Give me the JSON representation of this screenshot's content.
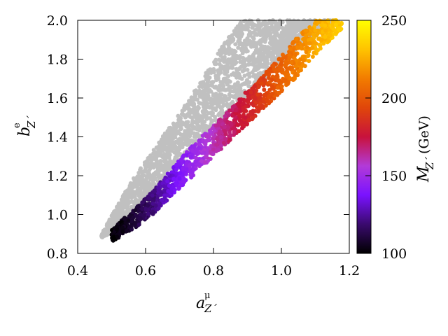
{
  "chart_data": {
    "type": "scatter",
    "title": "",
    "x_axis": {
      "symbol": "a",
      "superscript": "μ",
      "subscript": "Z´",
      "range": [
        0.4,
        1.2
      ],
      "ticks": [
        0.4,
        0.6,
        0.8,
        1.0,
        1.2
      ],
      "tick_labels": [
        "0.4",
        "0.6",
        "0.8",
        "1.0",
        "1.2"
      ]
    },
    "y_axis": {
      "symbol": "b",
      "superscript": "e",
      "subscript": "Z´",
      "range": [
        0.8,
        2.0
      ],
      "ticks": [
        0.8,
        1.0,
        1.2,
        1.4,
        1.6,
        1.8,
        2.0
      ],
      "tick_labels": [
        "0.8",
        "1.0",
        "1.2",
        "1.4",
        "1.6",
        "1.8",
        "2.0"
      ]
    },
    "colorbar": {
      "symbol": "M",
      "subscript": "Z´",
      "unit_text": "(GeV)",
      "range": [
        100,
        250
      ],
      "ticks": [
        100,
        150,
        200,
        250
      ],
      "tick_labels": [
        "100",
        "150",
        "200",
        "250"
      ],
      "palette": [
        "#000000",
        "#3a0a6e",
        "#7a12ff",
        "#b23ad8",
        "#c8123c",
        "#e0460a",
        "#f27c00",
        "#ffc300",
        "#ffff00"
      ]
    },
    "series": [
      {
        "color": "#c0c0c0",
        "description_region": {
          "x_range": [
            0.47,
            1.16
          ],
          "upper_edge": [
            [
              0.47,
              0.9
            ],
            [
              0.55,
              1.15
            ],
            [
              0.65,
              1.4
            ],
            [
              0.75,
              1.65
            ],
            [
              0.82,
              1.85
            ],
            [
              0.88,
              2.0
            ],
            [
              1.16,
              2.0
            ]
          ],
          "lower_edge": [
            [
              0.47,
              0.88
            ],
            [
              0.6,
              1.0
            ],
            [
              0.7,
              1.25
            ],
            [
              0.8,
              1.45
            ],
            [
              0.9,
              1.62
            ],
            [
              1.0,
              1.78
            ],
            [
              1.1,
              1.93
            ],
            [
              1.16,
              2.0
            ]
          ]
        }
      },
      {
        "colored_by": "M_Z",
        "band": [
          {
            "x": 0.5,
            "y_low": 0.86,
            "y_high": 0.92,
            "m": 100
          },
          {
            "x": 0.56,
            "y_low": 0.92,
            "y_high": 1.02,
            "m": 108
          },
          {
            "x": 0.62,
            "y_low": 1.0,
            "y_high": 1.12,
            "m": 120
          },
          {
            "x": 0.68,
            "y_low": 1.1,
            "y_high": 1.24,
            "m": 135
          },
          {
            "x": 0.74,
            "y_low": 1.2,
            "y_high": 1.36,
            "m": 148
          },
          {
            "x": 0.8,
            "y_low": 1.3,
            "y_high": 1.46,
            "m": 160
          },
          {
            "x": 0.86,
            "y_low": 1.4,
            "y_high": 1.56,
            "m": 172
          },
          {
            "x": 0.92,
            "y_low": 1.5,
            "y_high": 1.68,
            "m": 185
          },
          {
            "x": 0.98,
            "y_low": 1.6,
            "y_high": 1.78,
            "m": 200
          },
          {
            "x": 1.04,
            "y_low": 1.7,
            "y_high": 1.9,
            "m": 212
          },
          {
            "x": 1.1,
            "y_low": 1.82,
            "y_high": 2.0,
            "m": 225
          },
          {
            "x": 1.18,
            "y_low": 1.96,
            "y_high": 2.0,
            "m": 235
          }
        ]
      }
    ],
    "grid": false,
    "legend": "none"
  }
}
